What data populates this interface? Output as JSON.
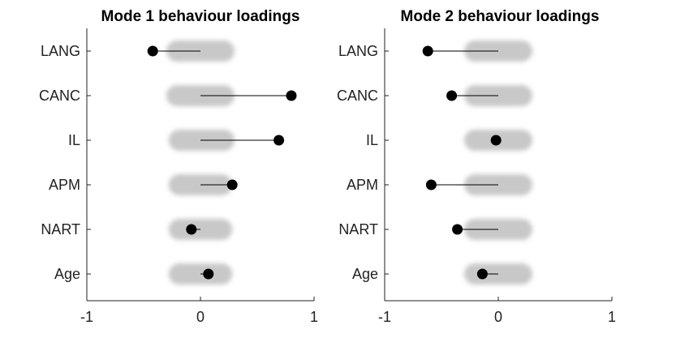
{
  "chart_data": [
    {
      "type": "scatter",
      "title": "Mode 1 behaviour loadings",
      "categories": [
        "LANG",
        "CANC",
        "IL",
        "APM",
        "NART",
        "Age"
      ],
      "values": [
        -0.42,
        0.8,
        0.69,
        0.28,
        -0.08,
        0.07
      ],
      "null_interval": [
        [
          -0.3,
          0.3
        ],
        [
          -0.3,
          0.3
        ],
        [
          -0.28,
          0.3
        ],
        [
          -0.28,
          0.28
        ],
        [
          -0.28,
          0.28
        ],
        [
          -0.28,
          0.28
        ]
      ],
      "xlim": [
        -1,
        1
      ],
      "xticks": [
        "-1",
        "0",
        "1"
      ],
      "colors": {
        "point": "#000000",
        "stem": "#000000",
        "null_band": "#c8c8c8"
      }
    },
    {
      "type": "scatter",
      "title": "Mode 2 behaviour loadings",
      "categories": [
        "LANG",
        "CANC",
        "IL",
        "APM",
        "NART",
        "Age"
      ],
      "values": [
        -0.62,
        -0.41,
        -0.02,
        -0.59,
        -0.36,
        -0.14
      ],
      "null_interval": [
        [
          -0.3,
          0.3
        ],
        [
          -0.3,
          0.3
        ],
        [
          -0.3,
          0.3
        ],
        [
          -0.3,
          0.3
        ],
        [
          -0.3,
          0.3
        ],
        [
          -0.3,
          0.3
        ]
      ],
      "xlim": [
        -1,
        1
      ],
      "xticks": [
        "-1",
        "0",
        "1"
      ],
      "colors": {
        "point": "#000000",
        "stem": "#000000",
        "null_band": "#c8c8c8"
      }
    }
  ]
}
